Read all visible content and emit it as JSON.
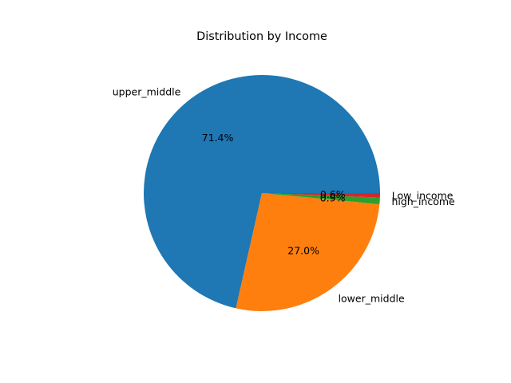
{
  "chart_data": {
    "type": "pie",
    "title": "Distribution by Income",
    "start_angle_deg": 0,
    "direction": "counterclockwise",
    "autopct_format": "%.1f%%",
    "slices": [
      {
        "label": "upper_middle",
        "value": 71.4,
        "pct_text": "71.4%",
        "color": "#1f77b4"
      },
      {
        "label": "lower_middle",
        "value": 27.0,
        "pct_text": "27.0%",
        "color": "#ff7f0e"
      },
      {
        "label": "high_income",
        "value": 0.9,
        "pct_text": "0.9%",
        "color": "#2ca02c"
      },
      {
        "label": "Low_income",
        "value": 0.6,
        "pct_text": "0.6%",
        "color": "#d62728"
      }
    ]
  }
}
